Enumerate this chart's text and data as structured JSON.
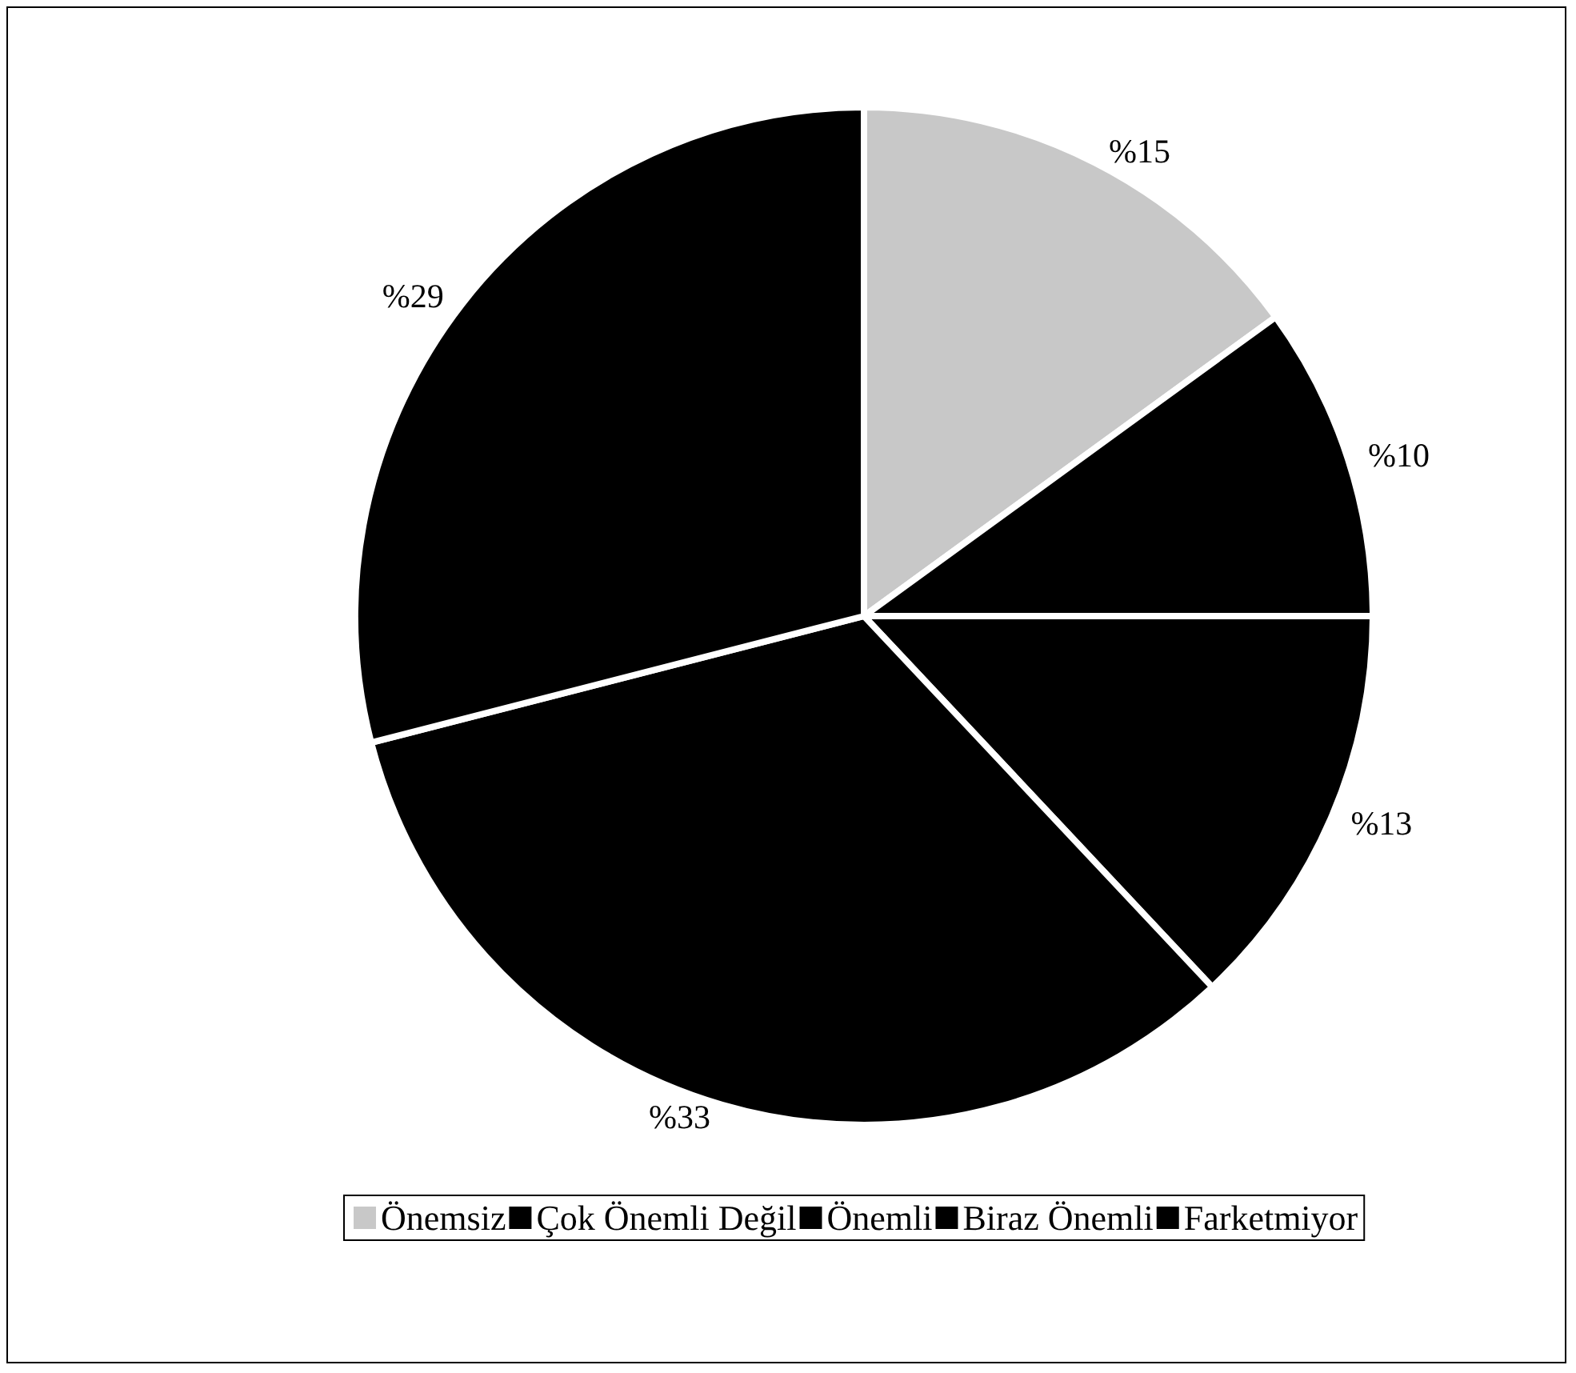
{
  "chart_data": {
    "type": "pie",
    "categories": [
      "Önemsiz",
      "Çok Önemli Değil",
      "Önemli",
      "Biraz Önemli",
      "Farketmiyor"
    ],
    "values": [
      15,
      10,
      13,
      33,
      29
    ],
    "value_labels": [
      "%15",
      "%10",
      "%13",
      "%33",
      "%29"
    ],
    "colors": [
      "#c8c8c8",
      "#000000",
      "#000000",
      "#000000",
      "#000000"
    ],
    "legend": "bottom"
  }
}
